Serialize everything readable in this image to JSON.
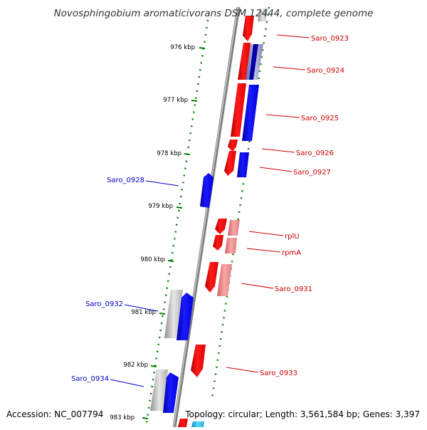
{
  "title": "Novosphingobium aromaticivorans DSM 12444, complete genome",
  "footer": {
    "accession": "Accession: NC_007794",
    "topology": "Topology: circular; Length: 3,561,584 bp; Genes: 3,397"
  },
  "kbp_labels": [
    "976 kbp",
    "977 kbp",
    "978 kbp",
    "979 kbp",
    "980 kbp",
    "981 kbp",
    "982 kbp",
    "983 kbp"
  ],
  "gene_labels": {
    "right": [
      {
        "id": "saro_0923",
        "text": "Saro_0923"
      },
      {
        "id": "saro_0924",
        "text": "Saro_0924"
      },
      {
        "id": "saro_0925",
        "text": "Saro_0925"
      },
      {
        "id": "saro_0926",
        "text": "Saro_0926"
      },
      {
        "id": "saro_0927",
        "text": "Saro_0927"
      },
      {
        "id": "rplu",
        "text": "rplU"
      },
      {
        "id": "rpma",
        "text": "rpmA"
      },
      {
        "id": "saro_0931",
        "text": "Saro_0931"
      },
      {
        "id": "saro_0933",
        "text": "Saro_0933"
      }
    ],
    "left": [
      {
        "id": "saro_0928",
        "text": "Saro_0928"
      },
      {
        "id": "saro_0932",
        "text": "Saro_0932"
      },
      {
        "id": "saro_0934",
        "text": "Saro_0934"
      }
    ]
  },
  "colors": {
    "forward_strand": "#ff0000",
    "reverse_strand": "#0000ff",
    "forward_label": "#cc0000",
    "reverse_label": "#0000cc",
    "axis": "#808080",
    "tick": "#008000"
  }
}
